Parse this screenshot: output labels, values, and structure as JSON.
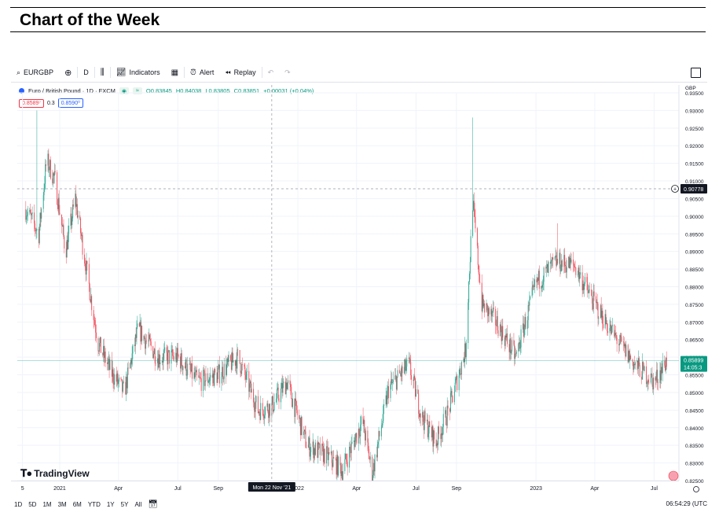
{
  "page_title": "Chart of the Week",
  "toolbar": {
    "symbol": "EURGBP",
    "interval": "D",
    "indicators_label": "Indicators",
    "alert_label": "Alert",
    "replay_label": "Replay"
  },
  "legend": {
    "instrument": "Euro / British Pound · 1D · FXCM",
    "open": "O0.83845",
    "high": "H0.84038",
    "low": "L0.83805",
    "close": "C0.83851",
    "change": "+0.00031 (+0.04%)"
  },
  "quotes": {
    "sell": "0.8589⁷",
    "spread": "0.3",
    "buy": "0.8590⁰"
  },
  "brand": "TradingView",
  "crosshair": {
    "price_label": "0.90778",
    "date_label": "Mon 22 Nov '21"
  },
  "last_price": {
    "price": "0.85899",
    "countdown": "14:05:3"
  },
  "currency": "GBP",
  "bottom_bar": {
    "ranges": [
      "1D",
      "5D",
      "1M",
      "3M",
      "6M",
      "YTD",
      "1Y",
      "5Y",
      "All"
    ],
    "clock": "06:54:29 (UTC"
  },
  "colors": {
    "up": "#089981",
    "down": "#f23645",
    "grid": "#f0f3fa"
  },
  "chart_data": {
    "type": "candlestick",
    "title": "",
    "symbol": "EURGBP",
    "ylim": [
      0.825,
      0.935
    ],
    "y_ticks": [
      "0.82500",
      "0.83000",
      "0.83500",
      "0.84000",
      "0.84500",
      "0.85000",
      "0.85500",
      "0.86000",
      "0.86500",
      "0.87000",
      "0.87500",
      "0.88000",
      "0.88500",
      "0.89000",
      "0.89500",
      "0.90000",
      "0.90500",
      "0.91000",
      "0.91500",
      "0.92000",
      "0.92500",
      "0.93000",
      "0.93500"
    ],
    "x_ticks": [
      "5",
      "2021",
      "Apr",
      "Jul",
      "Sep",
      "2022",
      "Apr",
      "Jul",
      "Sep",
      "2023",
      "Apr",
      "Jul"
    ],
    "close_path": [
      [
        "2020-11-10",
        0.902
      ],
      [
        "2020-11-30",
        0.895
      ],
      [
        "2020-12-12",
        0.916
      ],
      [
        "2020-12-25",
        0.91
      ],
      [
        "2021-01-10",
        0.89
      ],
      [
        "2021-01-25",
        0.905
      ],
      [
        "2021-02-10",
        0.886
      ],
      [
        "2021-03-01",
        0.864
      ],
      [
        "2021-03-20",
        0.856
      ],
      [
        "2021-04-10",
        0.85
      ],
      [
        "2021-05-01",
        0.868
      ],
      [
        "2021-06-01",
        0.86
      ],
      [
        "2021-07-01",
        0.86
      ],
      [
        "2021-08-01",
        0.853
      ],
      [
        "2021-09-01",
        0.855
      ],
      [
        "2021-10-01",
        0.86
      ],
      [
        "2021-11-01",
        0.845
      ],
      [
        "2021-11-22",
        0.846
      ],
      [
        "2021-12-15",
        0.853
      ],
      [
        "2022-01-15",
        0.835
      ],
      [
        "2022-02-15",
        0.832
      ],
      [
        "2022-03-10",
        0.828
      ],
      [
        "2022-04-10",
        0.842
      ],
      [
        "2022-04-25",
        0.827
      ],
      [
        "2022-05-20",
        0.851
      ],
      [
        "2022-06-20",
        0.858
      ],
      [
        "2022-07-10",
        0.843
      ],
      [
        "2022-08-01",
        0.836
      ],
      [
        "2022-08-20",
        0.845
      ],
      [
        "2022-09-15",
        0.862
      ],
      [
        "2022-09-26",
        0.904
      ],
      [
        "2022-10-10",
        0.875
      ],
      [
        "2022-11-01",
        0.87
      ],
      [
        "2022-12-01",
        0.86
      ],
      [
        "2023-01-01",
        0.881
      ],
      [
        "2023-02-01",
        0.887
      ],
      [
        "2023-03-01",
        0.886
      ],
      [
        "2023-04-01",
        0.875
      ],
      [
        "2023-05-01",
        0.866
      ],
      [
        "2023-06-01",
        0.858
      ],
      [
        "2023-07-01",
        0.853
      ],
      [
        "2023-07-20",
        0.859
      ]
    ]
  }
}
